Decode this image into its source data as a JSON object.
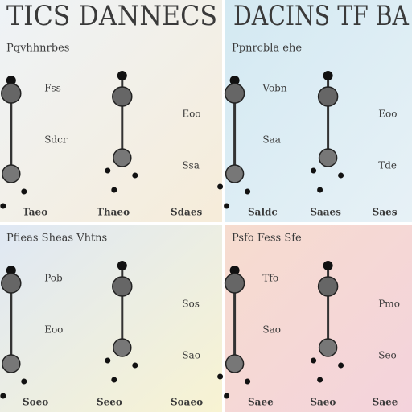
{
  "header": {
    "left_title": "TICS DANNECS",
    "right_title": "DACINS TF BA"
  },
  "panels": [
    {
      "heading": "Pqvhhnrbes",
      "side_labels": [
        "Fss",
        "Eoo",
        "Sdcr",
        "Ssa"
      ],
      "bottom_labels": [
        "Taeo",
        "Thaeo",
        "Sdaes"
      ]
    },
    {
      "heading": "Ppnrcbla ehe",
      "side_labels": [
        "Vobn",
        "Eoo",
        "Saa",
        "Tde"
      ],
      "bottom_labels": [
        "Saldc",
        "Saaes",
        "Saes"
      ]
    },
    {
      "heading": "Pfieas Sheas Vhtns",
      "side_labels": [
        "Pob",
        "Sos",
        "Eoo",
        "Sao"
      ],
      "bottom_labels": [
        "Soeo",
        "Seeo",
        "Soaeo"
      ]
    },
    {
      "heading": "Psfo Fess Sfe",
      "side_labels": [
        "Tfo",
        "Pmo",
        "Sao",
        "Seo"
      ],
      "bottom_labels": [
        "Saee",
        "Saeo",
        "Saee"
      ]
    }
  ]
}
